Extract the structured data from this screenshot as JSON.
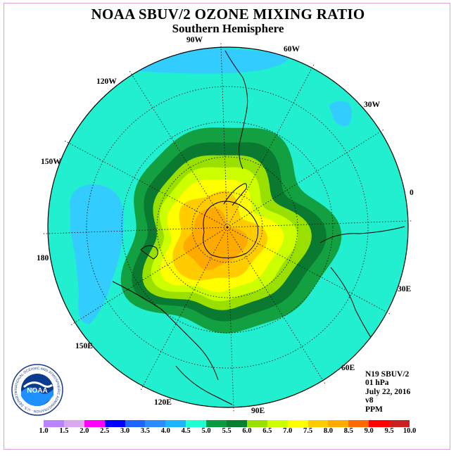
{
  "title": "NOAA SBUV/2 OZONE MIXING RATIO",
  "subtitle": "Southern Hemisphere",
  "longitude_labels": [
    "90W",
    "60W",
    "30W",
    "0",
    "30E",
    "60E",
    "90E",
    "120E",
    "150E",
    "180",
    "150W",
    "120W"
  ],
  "info": {
    "instrument": "N19 SBUV/2",
    "level": "01 hPa",
    "date": "July 22, 2016",
    "version": "v8",
    "units": "PPM"
  },
  "logo": {
    "text": "NOAA",
    "ring_text": "NATIONAL OCEANIC AND ATMOSPHERIC ADMINISTRATION · U.S. DEPARTMENT OF COMMERCE"
  },
  "colorbar": {
    "ticks": [
      "1.0",
      "1.5",
      "2.0",
      "2.5",
      "3.0",
      "3.5",
      "4.0",
      "4.5",
      "5.0",
      "5.5",
      "6.0",
      "6.5",
      "7.0",
      "7.5",
      "8.0",
      "8.5",
      "9.0",
      "9.5",
      "10.0"
    ],
    "colors": [
      "#b983ff",
      "#d9a8f0",
      "#ff00ff",
      "#0000ff",
      "#1e64ff",
      "#2a8cff",
      "#1eb4ff",
      "#20ffd4",
      "#0a9a40",
      "#068030",
      "#99e000",
      "#ccff00",
      "#ffff00",
      "#ffcc00",
      "#ffaa00",
      "#ff6a00",
      "#ff0000",
      "#cc2020",
      "#8b5a2b"
    ]
  },
  "map_colors": {
    "background": "#22eed0",
    "low_patch": "#33ccff",
    "band_5_5": "#12a040",
    "band_6_0": "#0a7a30",
    "band_6_5": "#99e000",
    "band_7_0": "#ccff00",
    "band_7_5": "#ffff00",
    "band_8_0": "#ffcc00",
    "band_8_5": "#ffaa00"
  }
}
